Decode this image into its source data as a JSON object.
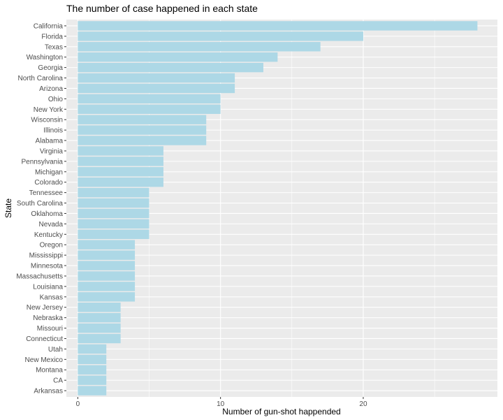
{
  "chart_data": {
    "type": "bar",
    "orientation": "horizontal",
    "title": "The number of case happened in each state",
    "xlabel": "Number of gun-shot happended",
    "ylabel": "State",
    "xlim": [
      -0.8,
      29.4
    ],
    "x_ticks": [
      0,
      10,
      20
    ],
    "grid": true,
    "bar_color": "#add8e6",
    "panel_color": "#ebebeb",
    "grid_color": "#ffffff",
    "categories": [
      "California",
      "Florida",
      "Texas",
      "Washington",
      "Georgia",
      "North Carolina",
      "Arizona",
      "Ohio",
      "New York",
      "Wisconsin",
      "Illinois",
      "Alabama",
      "Virginia",
      "Pennsylvania",
      "Michigan",
      "Colorado",
      "Tennessee",
      "South Carolina",
      "Oklahoma",
      "Nevada",
      "Kentucky",
      "Oregon",
      "Mississippi",
      "Minnesota",
      "Massachusetts",
      "Louisiana",
      "Kansas",
      "New Jersey",
      "Nebraska",
      "Missouri",
      "Connecticut",
      "Utah",
      "New Mexico",
      "Montana",
      "CA",
      "Arkansas"
    ],
    "values": [
      28,
      20,
      17,
      14,
      13,
      11,
      11,
      10,
      10,
      9,
      9,
      9,
      6,
      6,
      6,
      6,
      5,
      5,
      5,
      5,
      5,
      4,
      4,
      4,
      4,
      4,
      4,
      3,
      3,
      3,
      3,
      2,
      2,
      2,
      2,
      2
    ]
  }
}
